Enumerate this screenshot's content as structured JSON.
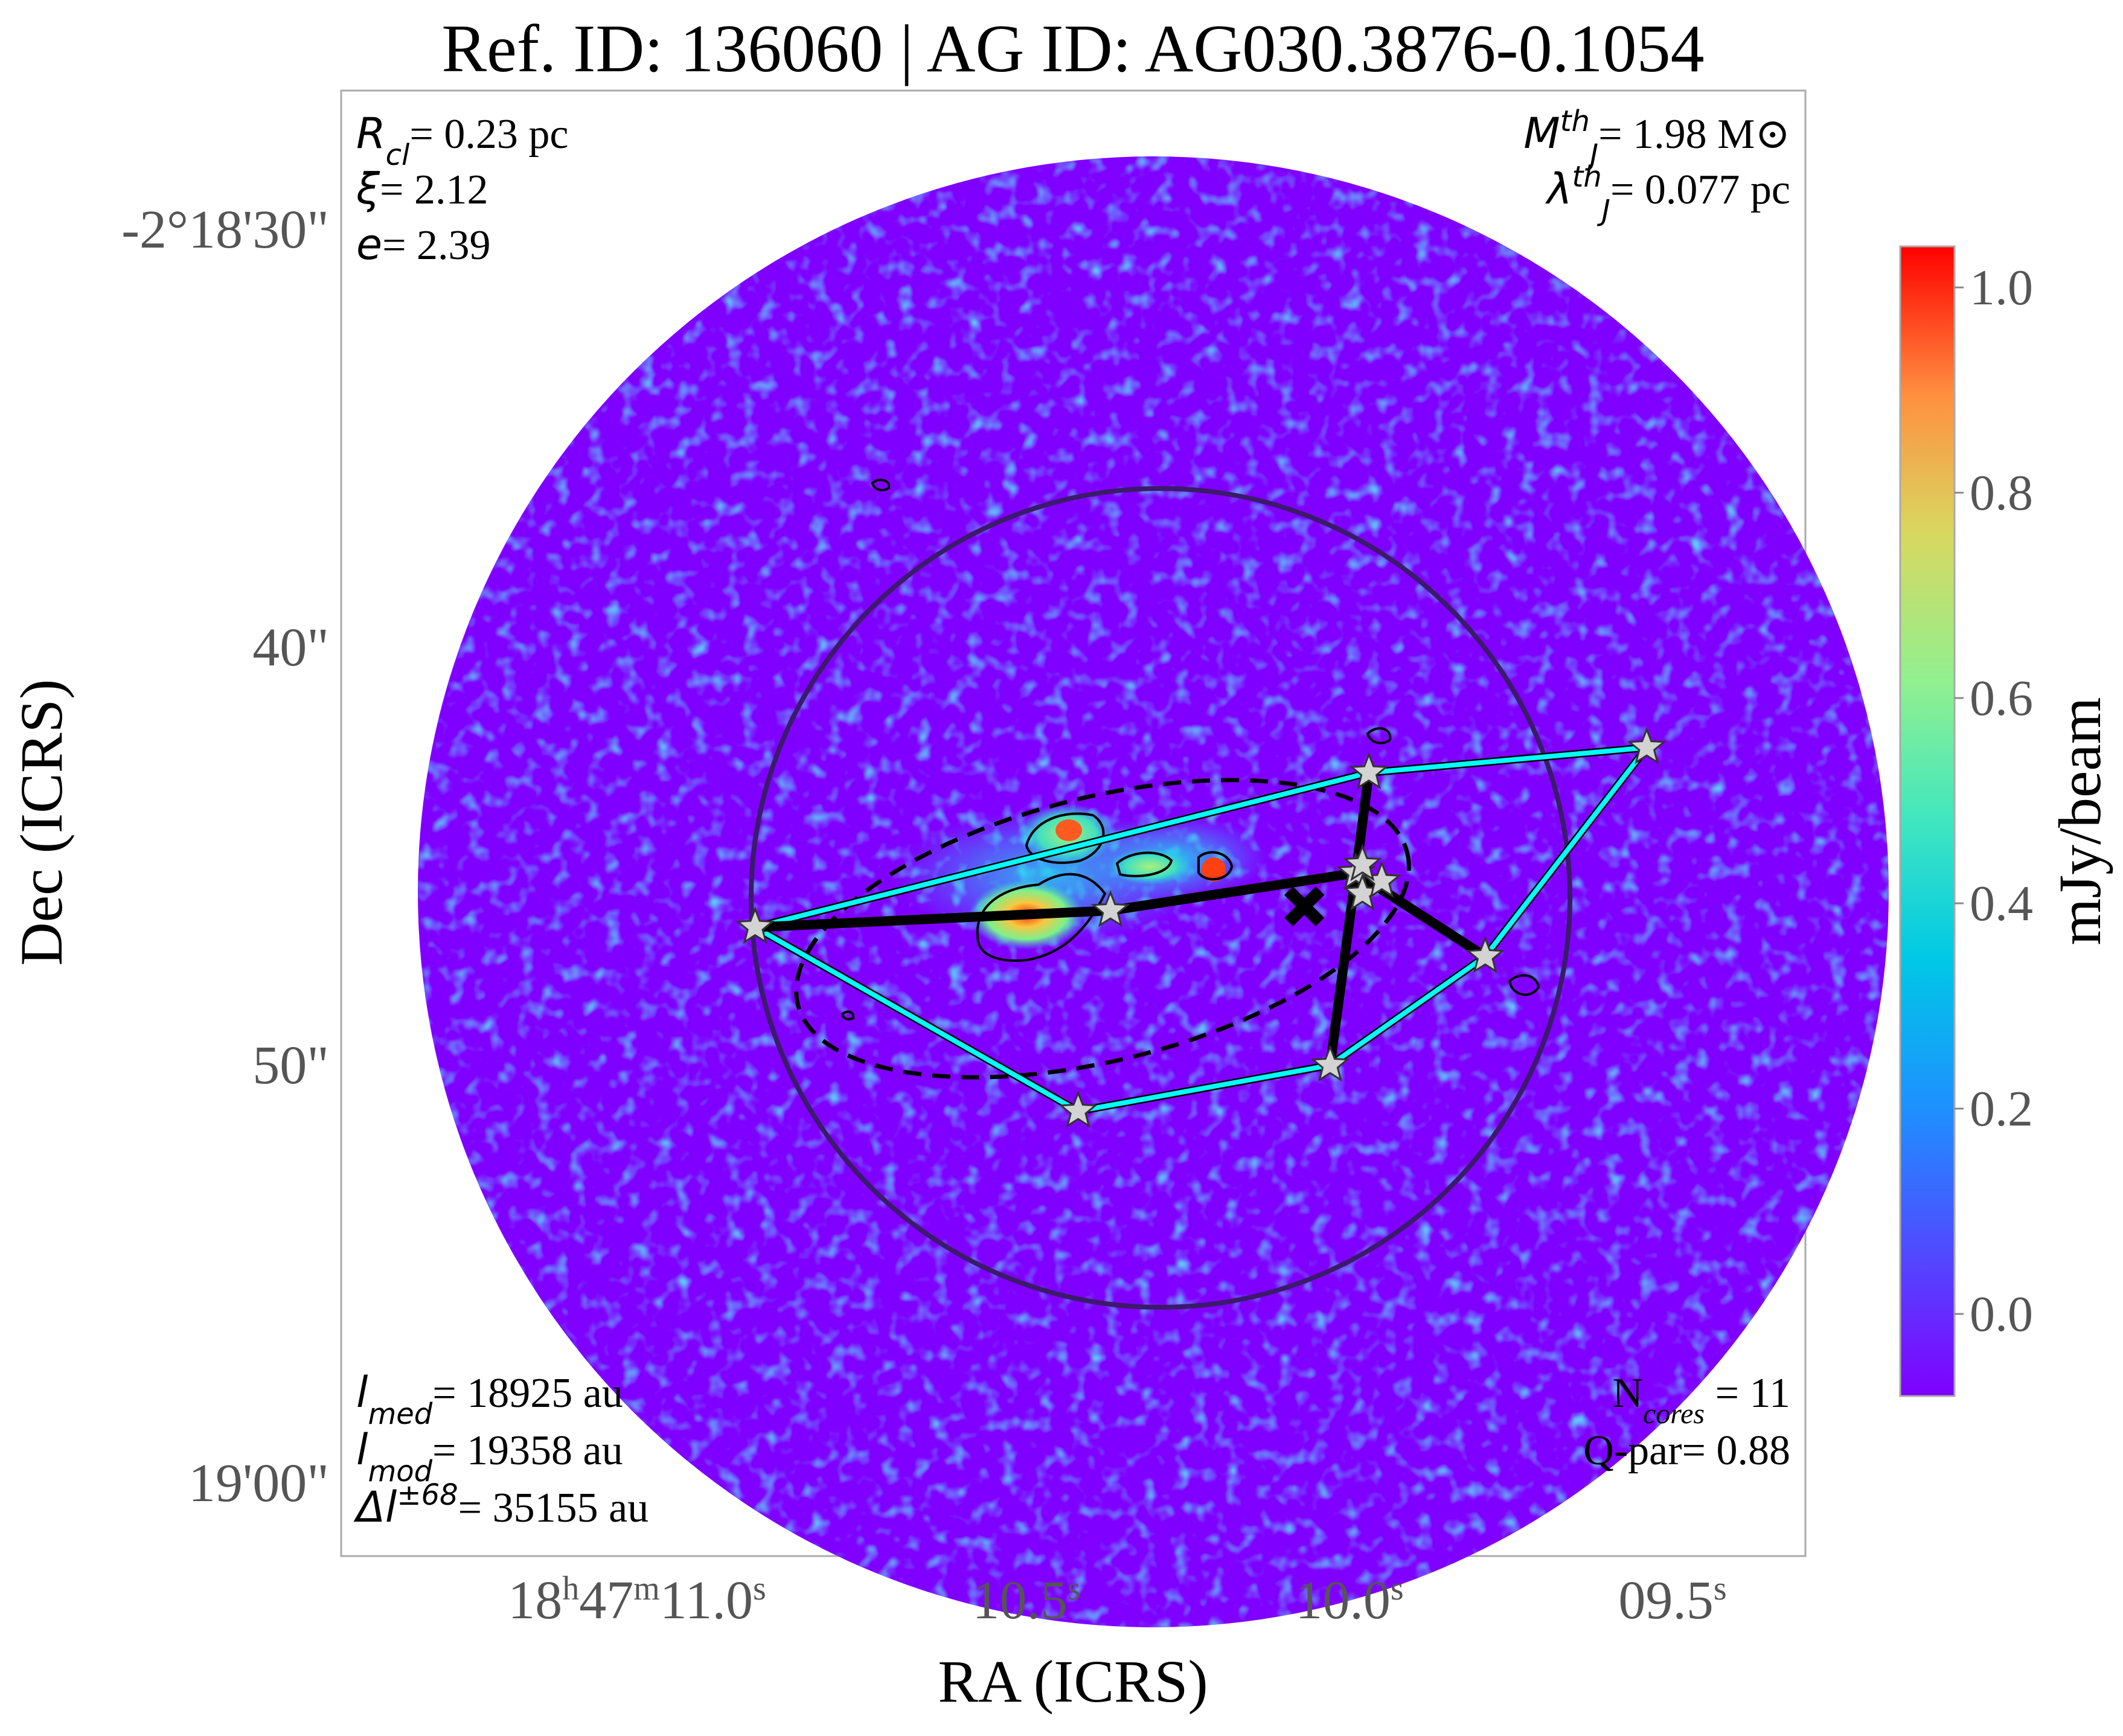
{
  "title": "Ref. ID: 136060 | AG ID: AG030.3876-0.1054",
  "chart_data": {
    "type": "heatmap",
    "xlabel": "RA (ICRS)",
    "ylabel": "Dec (ICRS)",
    "x_ticks": [
      {
        "value": 11.0,
        "label": "18h47m11.0s"
      },
      {
        "value": 10.5,
        "label": "10.5s"
      },
      {
        "value": 10.0,
        "label": "10.0s"
      },
      {
        "value": 9.5,
        "label": "09.5s"
      }
    ],
    "y_ticks": [
      {
        "value": 30,
        "label": "-2°18'30\""
      },
      {
        "value": 40,
        "label": "40\""
      },
      {
        "value": 50,
        "label": "50\""
      },
      {
        "value": 60,
        "label": "19'00\""
      }
    ],
    "colorbar": {
      "label": "mJy/beam",
      "range": [
        -0.08,
        1.04
      ],
      "ticks": [
        {
          "value": 0.0,
          "label": "0.0"
        },
        {
          "value": 0.2,
          "label": "0.2"
        },
        {
          "value": 0.4,
          "label": "0.4"
        },
        {
          "value": 0.6,
          "label": "0.6"
        },
        {
          "value": 0.8,
          "label": "0.8"
        },
        {
          "value": 1.0,
          "label": "1.0"
        }
      ]
    },
    "cores": [
      {
        "ra": 10.92,
        "dec": 46.7
      },
      {
        "ra": 10.37,
        "dec": 46.3
      },
      {
        "ra": 9.97,
        "dec": 43.0
      },
      {
        "ra": 9.99,
        "dec": 45.4
      },
      {
        "ra": 9.98,
        "dec": 45.9
      },
      {
        "ra": 9.95,
        "dec": 45.6
      },
      {
        "ra": 9.98,
        "dec": 45.2
      },
      {
        "ra": 9.79,
        "dec": 47.4
      },
      {
        "ra": 9.54,
        "dec": 42.4
      },
      {
        "ra": 10.03,
        "dec": 50.0
      },
      {
        "ra": 10.42,
        "dec": 51.1
      }
    ],
    "clump_centroid": {
      "ra": 10.07,
      "dec": 46.2
    },
    "mst_edges": [
      [
        0,
        1
      ],
      [
        1,
        3
      ],
      [
        3,
        2
      ],
      [
        3,
        7
      ],
      [
        3,
        9
      ]
    ],
    "hull_edges": [
      [
        0,
        2
      ],
      [
        2,
        8
      ],
      [
        8,
        7
      ],
      [
        7,
        9
      ],
      [
        9,
        10
      ],
      [
        10,
        0
      ]
    ],
    "annotations": {
      "tl": [
        "R_cl= 0.23 pc",
        "ξ= 2.12",
        "e= 2.39"
      ],
      "tr": [
        "M_J^th= 1.98 M⊙",
        "λ_J^th= 0.077 pc"
      ],
      "bl": [
        "l_med= 18925 au",
        "l_mod= 19358 au",
        "Δl^±68= 35155 au"
      ],
      "br": [
        "N_cores = 11",
        "Q-par= 0.88"
      ]
    }
  },
  "annotation_text": {
    "tl": [
      {
        "sym": "R",
        "sub": "cl",
        "rest": "= 0.23 pc"
      },
      {
        "sym": "ξ",
        "sub": "",
        "rest": "= 2.12"
      },
      {
        "sym": "e",
        "sub": "",
        "rest": "= 2.39"
      }
    ],
    "tr": [
      {
        "sym": "M",
        "sub": "J",
        "sup": "th",
        "rest": "= 1.98 M⊙"
      },
      {
        "sym": "λ",
        "sub": "J",
        "sup": "th",
        "rest": "= 0.077 pc"
      }
    ],
    "bl": [
      {
        "sym": "l",
        "sub": "med",
        "rest": "= 18925 au"
      },
      {
        "sym": "l",
        "sub": "mod",
        "rest": "= 19358 au"
      },
      {
        "sym": "Δl",
        "sup": "±68",
        "rest": "= 35155 au"
      }
    ],
    "br": [
      {
        "plain": "N",
        "sub": "cores",
        "rest": " = 11"
      },
      {
        "plain": "Q-par= 0.88"
      }
    ]
  },
  "colors": {
    "cmap_low": "#7f00ff",
    "hull": "#00ffff",
    "mst": "#000000",
    "big_circle": "#3b1a6b",
    "star_fill": "#d3d3d3"
  }
}
